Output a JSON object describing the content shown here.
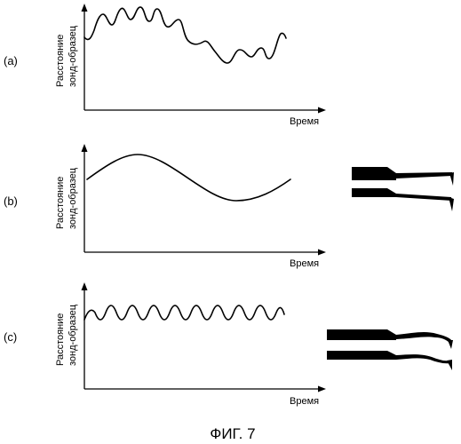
{
  "panels": [
    {
      "label": "(a)",
      "ylabel_line1": "Расстояние",
      "ylabel_line2": "зонд-образец",
      "xlabel": "Время"
    },
    {
      "label": "(b)",
      "ylabel_line1": "Расстояние",
      "ylabel_line2": "зонд-образец",
      "xlabel": "Время"
    },
    {
      "label": "(c)",
      "ylabel_line1": "Расстояние",
      "ylabel_line2": "зонд-образец",
      "xlabel": "Время"
    }
  ],
  "caption": "ФИГ. 7"
}
